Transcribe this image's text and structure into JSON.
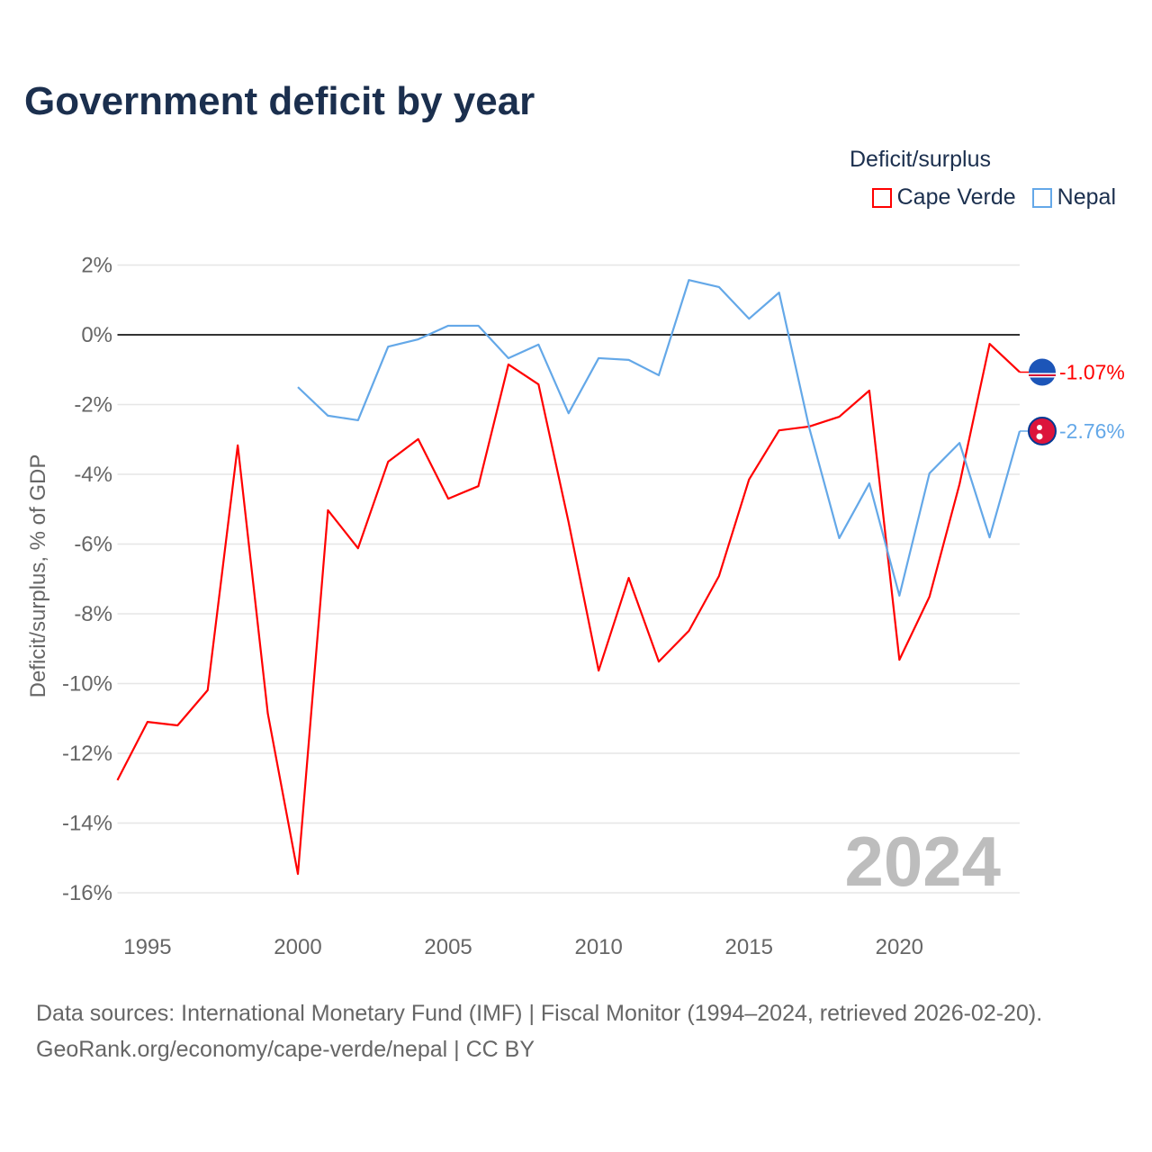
{
  "title": "Government deficit by year",
  "legend_title": "Deficit/surplus",
  "source_line1": "Data sources: International Monetary Fund (IMF) | Fiscal Monitor (1994–2024, retrieved 2026-02-20).",
  "source_line2": "GeoRank.org/economy/cape-verde/nepal | CC BY",
  "chart_data": {
    "type": "line",
    "title": "Government deficit by year",
    "xlabel": "",
    "ylabel": "Deficit/surplus, % of GDP",
    "xlim": [
      1994,
      2024
    ],
    "ylim": [
      -16,
      2
    ],
    "xticks": [
      1995,
      2000,
      2005,
      2010,
      2015,
      2020
    ],
    "xtick_labels": [
      "1995",
      "2000",
      "2005",
      "2010",
      "2015",
      "2020"
    ],
    "yticks": [
      2,
      0,
      -2,
      -4,
      -6,
      -8,
      -10,
      -12,
      -14,
      -16
    ],
    "ytick_labels": [
      "2%",
      "0%",
      "-2%",
      "-4%",
      "-6%",
      "-8%",
      "-10%",
      "-12%",
      "-14%",
      "-16%"
    ],
    "grid": true,
    "legend_position": "top-right",
    "year_watermark": "2024",
    "series": [
      {
        "name": "Cape Verde",
        "color": "#ff0000",
        "end_label": "-1.07%",
        "x": [
          1994,
          1995,
          1996,
          1997,
          1998,
          1999,
          2000,
          2001,
          2002,
          2003,
          2004,
          2005,
          2006,
          2007,
          2008,
          2009,
          2010,
          2011,
          2012,
          2013,
          2014,
          2015,
          2016,
          2017,
          2018,
          2019,
          2020,
          2021,
          2022,
          2023,
          2024
        ],
        "values": [
          -12.77,
          -11.1,
          -11.2,
          -10.19,
          -3.17,
          -10.86,
          -15.46,
          -5.03,
          -6.12,
          -3.64,
          -2.99,
          -4.7,
          -4.34,
          -0.85,
          -1.42,
          -5.37,
          -9.63,
          -6.97,
          -9.37,
          -8.49,
          -6.92,
          -4.15,
          -2.74,
          -2.63,
          -2.35,
          -1.6,
          -9.32,
          -7.51,
          -4.28,
          -0.26,
          -1.07
        ]
      },
      {
        "name": "Nepal",
        "color": "#64a8e8",
        "end_label": "-2.76%",
        "x": [
          2000,
          2001,
          2002,
          2003,
          2004,
          2005,
          2006,
          2007,
          2008,
          2009,
          2010,
          2011,
          2012,
          2013,
          2014,
          2015,
          2016,
          2017,
          2018,
          2019,
          2020,
          2021,
          2022,
          2023,
          2024
        ],
        "values": [
          -1.5,
          -2.32,
          -2.45,
          -0.34,
          -0.13,
          0.26,
          0.26,
          -0.67,
          -0.28,
          -2.25,
          -0.67,
          -0.72,
          -1.16,
          1.57,
          1.37,
          0.46,
          1.21,
          -2.66,
          -5.83,
          -4.26,
          -7.48,
          -3.97,
          -3.1,
          -5.81,
          -2.76
        ]
      }
    ]
  }
}
